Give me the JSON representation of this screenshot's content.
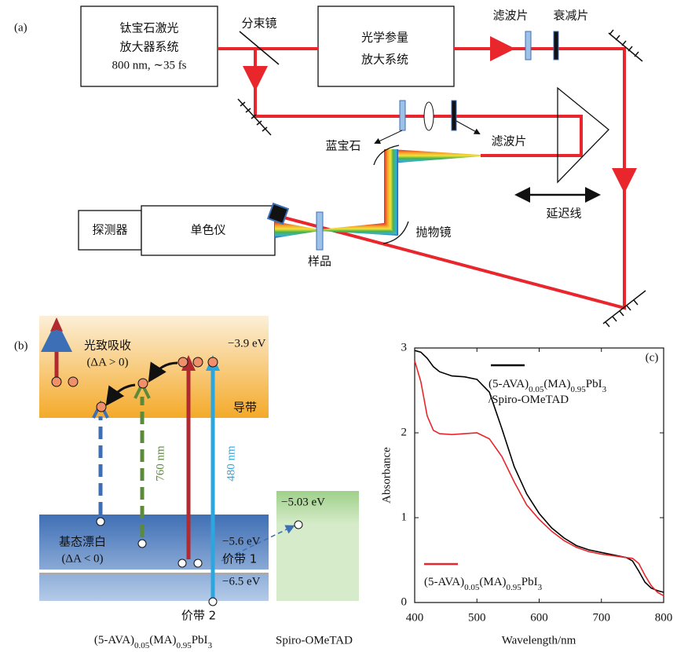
{
  "panel_a": {
    "label": "(a)",
    "laser_box": [
      "钛宝石激光",
      "放大器系统",
      "800 nm, ∼35 fs"
    ],
    "beam_splitter": "分束镜",
    "opa_box": [
      "光学参量",
      "放大系统"
    ],
    "filter_1": "滤波片",
    "attenuator": "衰减片",
    "sapphire": "蓝宝石",
    "filter_2": "滤波片",
    "delay_line": "延迟线",
    "detector": "探测器",
    "monochromator": "单色仪",
    "sample": "样品",
    "parabolic_mirror": "抛物镜"
  },
  "panel_b": {
    "label": "(b)",
    "photoinduced_absorption": "光致吸收",
    "pa_sign": "(ΔA > 0)",
    "cb_energy": "−3.9 eV",
    "conduction_band": "导带",
    "pump_760": "760 nm",
    "pump_480": "480 nm",
    "spiro_energy": "−5.03 eV",
    "vb1_energy": "−5.6 eV",
    "ground_state_bleach": "基态漂白",
    "gsb_sign": "(ΔA < 0)",
    "valence_band_1": "价带 1",
    "vb2_energy": "−6.5 eV",
    "valence_band_2": "价带 2",
    "material": "(5-AVA)0.05(MA)0.95PbI3",
    "spiro": "Spiro-OMeTAD"
  },
  "chart_data": {
    "type": "line",
    "panel_label": "(c)",
    "x_label": "Wavelength/nm",
    "y_label": "Absorbance",
    "x": [
      400,
      410,
      420,
      430,
      440,
      460,
      480,
      500,
      520,
      540,
      560,
      580,
      600,
      620,
      640,
      660,
      680,
      700,
      720,
      740,
      750,
      760,
      770,
      780,
      790,
      800
    ],
    "series": [
      {
        "name": "(5-AVA)0.05(MA)0.95PbI3/Spiro-OMeTAD",
        "color": "#000000",
        "values": [
          2.97,
          2.95,
          2.88,
          2.78,
          2.72,
          2.67,
          2.66,
          2.63,
          2.48,
          2.05,
          1.6,
          1.28,
          1.05,
          0.88,
          0.76,
          0.67,
          0.62,
          0.59,
          0.56,
          0.53,
          0.49,
          0.37,
          0.24,
          0.17,
          0.14,
          0.12
        ]
      },
      {
        "name": "(5-AVA)0.05(MA)0.95PbI3",
        "color": "#e8262b",
        "values": [
          2.85,
          2.6,
          2.2,
          2.03,
          1.99,
          1.98,
          1.99,
          2.0,
          1.93,
          1.72,
          1.42,
          1.15,
          0.98,
          0.84,
          0.73,
          0.65,
          0.6,
          0.57,
          0.55,
          0.53,
          0.52,
          0.46,
          0.32,
          0.2,
          0.12,
          0.08
        ]
      }
    ],
    "xlim": [
      400,
      800
    ],
    "xticks": [
      400,
      500,
      600,
      700,
      800
    ],
    "ylim": [
      0,
      3
    ],
    "yticks": [
      0,
      1,
      2,
      3
    ]
  }
}
